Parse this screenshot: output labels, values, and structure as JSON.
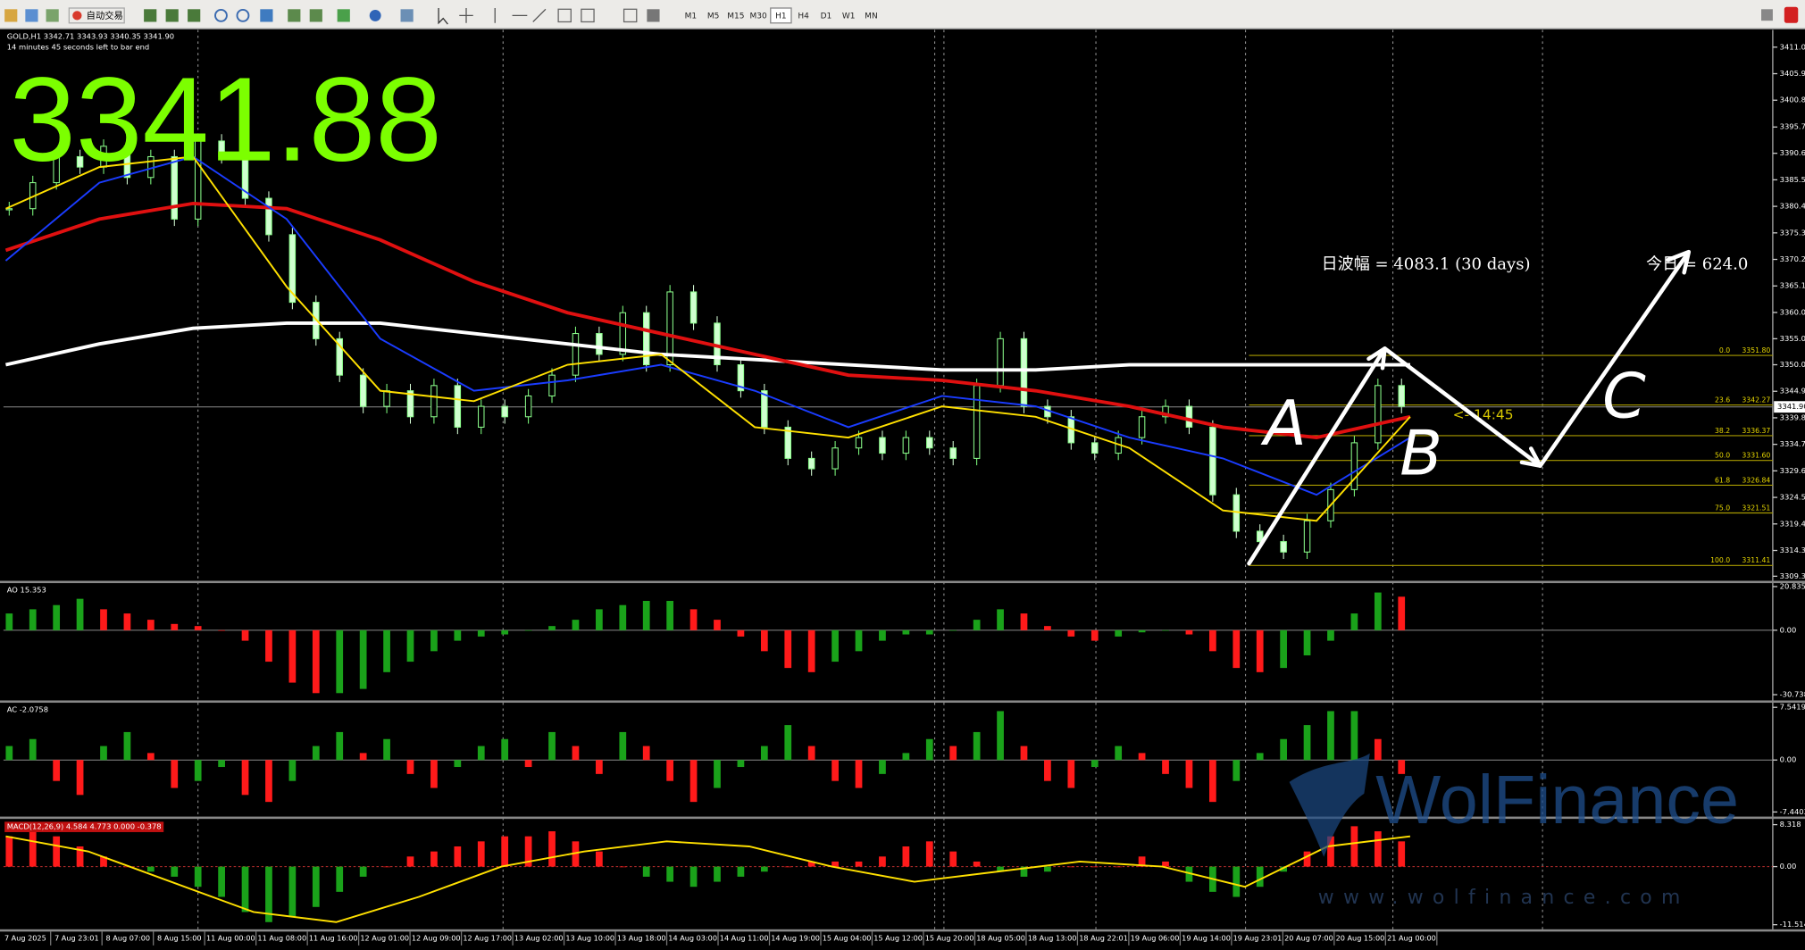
{
  "toolbar": {
    "auto_trade": "自动交易",
    "timeframes": [
      "M1",
      "M5",
      "M15",
      "M30",
      "H1",
      "H4",
      "D1",
      "W1",
      "MN"
    ],
    "active": "H1"
  },
  "price_chart": {
    "symbol_line": "GOLD,H1  3342.71 3343.93 3340.35 3341.90",
    "timer": "14 minutes 45 seconds left to bar end",
    "big_price": "3341.88",
    "ylim": [
      3309.35,
      3411.05
    ],
    "yticks": [
      3411.05,
      3405.95,
      3400.85,
      {
        "value": 3395.7,
        "label": "3395.70"
      },
      3390.65,
      3385.55,
      3380.45,
      3375.35,
      3370.25,
      3365.15,
      3360.05,
      {
        "value": 3355,
        "label": "3355.00"
      },
      {
        "value": 3350,
        "label": "3350.00"
      },
      {
        "value": 3344.9,
        "label": "3344.90"
      },
      {
        "value": 3339.8,
        "label": "3339.80"
      },
      {
        "value": 3334.7,
        "label": "3334.70"
      },
      {
        "value": 3329.6,
        "label": "3329.60"
      },
      {
        "value": 3324.5,
        "label": "3324.50"
      },
      {
        "value": 3319.4,
        "label": "3319.40"
      },
      {
        "value": 3314.3,
        "label": "3314.30"
      },
      3309.35
    ],
    "current": {
      "value": 3341.9,
      "label": "3341.90"
    },
    "closes": [
      3380,
      3385,
      3390,
      3388,
      3392,
      3386,
      3390,
      3378,
      3393,
      3390,
      3382,
      3375,
      3362,
      3355,
      3348,
      3342,
      3345,
      3340,
      3346,
      3338,
      3342,
      3340,
      3344,
      3348,
      3356,
      3352,
      3360,
      3350,
      3364,
      3358,
      3350,
      3345,
      3338,
      3332,
      3330,
      3334,
      3336,
      3333,
      3336,
      3334,
      3332,
      3346,
      3355,
      3342,
      3340,
      3335,
      3333,
      3336,
      3340,
      3342,
      3338,
      3325,
      3318,
      3316,
      3314,
      3320,
      3326,
      3335,
      3346,
      3342
    ],
    "ma": [
      {
        "color": "#ffffff",
        "values": [
          3350,
          3354,
          3357,
          3358,
          3358,
          3356,
          3354,
          3352,
          3351,
          3350,
          3349,
          3349,
          3350,
          3350,
          3350,
          3350
        ]
      },
      {
        "color": "#e01010",
        "values": [
          3372,
          3378,
          3381,
          3380,
          3374,
          3366,
          3360,
          3356,
          3352,
          3348,
          3347,
          3345,
          3342,
          3338,
          3336,
          3340
        ]
      },
      {
        "color": "#1a3cff",
        "values": [
          3370,
          3385,
          3390,
          3378,
          3355,
          3345,
          3347,
          3350,
          3345,
          3338,
          3344,
          3342,
          3336,
          3332,
          3325,
          3336
        ]
      },
      {
        "color": "#ffe000",
        "values": [
          3380,
          3388,
          3390,
          3365,
          3345,
          3343,
          3350,
          3352,
          3338,
          3336,
          3342,
          3340,
          3334,
          3322,
          3320,
          3340
        ]
      }
    ],
    "x_labels": [
      "7 Aug 2025",
      "7 Aug 23:01",
      "8 Aug 07:00",
      "8 Aug 15:00",
      "11 Aug 00:00",
      "11 Aug 08:00",
      "11 Aug 16:00",
      "12 Aug 01:00",
      "12 Aug 09:00",
      "12 Aug 17:00",
      "13 Aug 02:00",
      "13 Aug 10:00",
      "13 Aug 18:00",
      "14 Aug 03:00",
      "14 Aug 11:00",
      "14 Aug 19:00",
      "15 Aug 04:00",
      "15 Aug 12:00",
      "15 Aug 20:00",
      "18 Aug 05:00",
      "18 Aug 13:00",
      "18 Aug 22:01",
      "19 Aug 06:00",
      "19 Aug 14:00",
      "19 Aug 23:01",
      "20 Aug 07:00",
      "20 Aug 15:00",
      "21 Aug 00:00"
    ],
    "range_text": "日波幅 = 4083.1  (30 days)",
    "today_text": "今日 = 624.0",
    "countdown": "<- 14:45",
    "fib": [
      {
        "level": "0.0",
        "price": {
          "value": 3351.8,
          "label": "3351.80"
        }
      },
      {
        "level": "23.6",
        "price": 3342.27
      },
      {
        "level": "38.2",
        "price": 3336.37
      },
      {
        "level": "50.0",
        "price": {
          "value": 3331.6,
          "label": "3331.60"
        }
      },
      {
        "level": "61.8",
        "price": 3326.84
      },
      {
        "level": "75.0",
        "price": 3321.51
      },
      {
        "level": "100.0",
        "price": 3311.41
      }
    ],
    "annotations": [
      "A",
      "B",
      "C"
    ]
  },
  "indicators": [
    {
      "label": "AO 15.353",
      "mode": "trend",
      "ylim": [
        -30.738,
        20.835
      ],
      "yticks": [
        20.835,
        {
          "value": 0,
          "label": "0.00"
        },
        -30.738
      ],
      "values": [
        8,
        10,
        12,
        15,
        10,
        8,
        5,
        3,
        2,
        0,
        -5,
        -15,
        -25,
        -30,
        -30,
        -28,
        -20,
        -15,
        -10,
        -5,
        -3,
        -2,
        0,
        2,
        5,
        10,
        12,
        14,
        14,
        10,
        5,
        -3,
        -10,
        -18,
        -20,
        -15,
        -10,
        -5,
        -2,
        -2,
        0,
        5,
        10,
        8,
        2,
        -3,
        -5,
        -3,
        -1,
        0,
        -2,
        -10,
        -18,
        -20,
        -18,
        -12,
        -5,
        8,
        18,
        16
      ]
    },
    {
      "label": "AC -2.0758",
      "mode": "trend",
      "ylim": [
        -7.4403,
        7.5419
      ],
      "yticks": [
        7.5419,
        {
          "value": 0,
          "label": "0.00"
        },
        -7.4403
      ],
      "values": [
        2,
        3,
        -3,
        -5,
        2,
        4,
        1,
        -4,
        -3,
        -1,
        -5,
        -6,
        -3,
        2,
        4,
        1,
        3,
        -2,
        -4,
        -1,
        2,
        3,
        -1,
        4,
        2,
        -2,
        4,
        2,
        -3,
        -6,
        -4,
        -1,
        2,
        5,
        2,
        -3,
        -4,
        -2,
        1,
        3,
        2,
        4,
        7,
        2,
        -3,
        -4,
        -1,
        2,
        1,
        -2,
        -4,
        -6,
        -3,
        1,
        3,
        5,
        7,
        7,
        3,
        -2
      ]
    },
    {
      "label": "MACD(12,26,9) 4.584 4.773 0.000 -0.378",
      "mode": "sign",
      "ylim": [
        -11.514,
        8.318
      ],
      "yticks": [
        8.318,
        {
          "value": 0,
          "label": "0.00"
        },
        -11.514
      ],
      "values": [
        6,
        8,
        6,
        4,
        2,
        0,
        -1,
        -2,
        -4,
        -6,
        -9,
        -11,
        -10,
        -8,
        -5,
        -2,
        0,
        2,
        3,
        4,
        5,
        6,
        6,
        7,
        5,
        3,
        0,
        -2,
        -3,
        -4,
        -3,
        -2,
        -1,
        0,
        1,
        1,
        1,
        2,
        4,
        5,
        3,
        1,
        -1,
        -2,
        -1,
        0,
        0,
        0,
        2,
        1,
        -3,
        -5,
        -6,
        -4,
        -1,
        3,
        6,
        8,
        7,
        5
      ],
      "signal": [
        6,
        3,
        -3,
        -9,
        -11,
        -6,
        0,
        3,
        5,
        4,
        0,
        -3,
        -1,
        1,
        0,
        -4,
        4,
        6
      ]
    }
  ],
  "watermark": {
    "brand": "WolFinance",
    "url": "www.wolfinance.com"
  }
}
